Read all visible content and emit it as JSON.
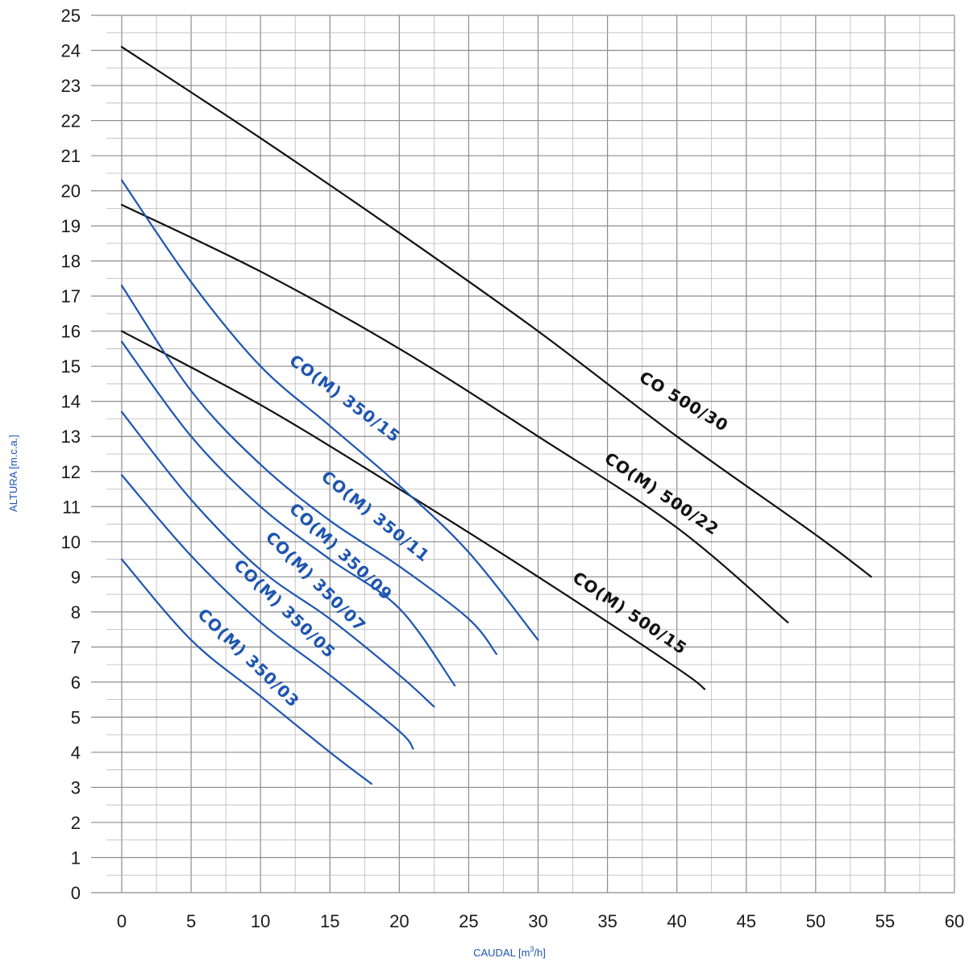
{
  "chart_data": {
    "type": "line",
    "title": "",
    "xlabel": "CAUDAL [m",
    "xlabel_sup": "3",
    "xlabel_tail": "/h]",
    "ylabel": "ALTURA [m.c.a.]",
    "xlim": [
      0,
      60
    ],
    "ylim": [
      0,
      25
    ],
    "x_ticks": [
      "0",
      "5",
      "10",
      "15",
      "20",
      "25",
      "30",
      "35",
      "40",
      "45",
      "50",
      "55",
      "60"
    ],
    "y_ticks": [
      "0",
      "1",
      "2",
      "3",
      "4",
      "5",
      "6",
      "7",
      "8",
      "9",
      "10",
      "11",
      "12",
      "13",
      "14",
      "15",
      "16",
      "17",
      "18",
      "19",
      "20",
      "21",
      "22",
      "23",
      "24",
      "25"
    ],
    "grid": true,
    "colors": {
      "black_series": "#111111",
      "blue_series": "#1d55b0"
    },
    "series": [
      {
        "name": "CO  500/30",
        "color": "#111111",
        "points": [
          [
            0,
            24.1
          ],
          [
            10,
            21.5
          ],
          [
            20,
            18.8
          ],
          [
            30,
            16.0
          ],
          [
            40,
            13.0
          ],
          [
            50,
            10.2
          ],
          [
            54,
            9.0
          ]
        ]
      },
      {
        "name": "CO(M) 500/22",
        "color": "#111111",
        "points": [
          [
            0,
            19.6
          ],
          [
            10,
            17.7
          ],
          [
            20,
            15.5
          ],
          [
            30,
            13.0
          ],
          [
            40,
            10.4
          ],
          [
            48,
            7.7
          ]
        ]
      },
      {
        "name": "CO(M) 500/15",
        "color": "#111111",
        "points": [
          [
            0,
            16.0
          ],
          [
            10,
            13.9
          ],
          [
            20,
            11.5
          ],
          [
            30,
            9.0
          ],
          [
            40,
            6.4
          ],
          [
            42,
            5.8
          ]
        ]
      },
      {
        "name": "CO(M) 350/15",
        "color": "#1d55b0",
        "points": [
          [
            0,
            20.3
          ],
          [
            5,
            17.4
          ],
          [
            10,
            15.0
          ],
          [
            15,
            13.3
          ],
          [
            20,
            11.6
          ],
          [
            25,
            9.7
          ],
          [
            30,
            7.2
          ]
        ]
      },
      {
        "name": "CO(M) 350/11",
        "color": "#1d55b0",
        "points": [
          [
            0,
            17.3
          ],
          [
            5,
            14.3
          ],
          [
            10,
            12.2
          ],
          [
            15,
            10.6
          ],
          [
            20,
            9.3
          ],
          [
            25,
            7.8
          ],
          [
            27,
            6.8
          ]
        ]
      },
      {
        "name": "CO(M) 350/09",
        "color": "#1d55b0",
        "points": [
          [
            0,
            15.7
          ],
          [
            5,
            13.0
          ],
          [
            10,
            11.0
          ],
          [
            15,
            9.5
          ],
          [
            20,
            8.1
          ],
          [
            24,
            5.9
          ]
        ]
      },
      {
        "name": "CO(M) 350/07",
        "color": "#1d55b0",
        "points": [
          [
            0,
            13.7
          ],
          [
            5,
            11.2
          ],
          [
            10,
            9.2
          ],
          [
            15,
            7.8
          ],
          [
            20,
            6.2
          ],
          [
            22.5,
            5.3
          ]
        ]
      },
      {
        "name": "CO(M) 350/05",
        "color": "#1d55b0",
        "points": [
          [
            0,
            11.9
          ],
          [
            5,
            9.6
          ],
          [
            10,
            7.7
          ],
          [
            15,
            6.2
          ],
          [
            20,
            4.6
          ],
          [
            21,
            4.1
          ]
        ]
      },
      {
        "name": "CO(M) 350/03",
        "color": "#1d55b0",
        "points": [
          [
            0,
            9.5
          ],
          [
            5,
            7.2
          ],
          [
            10,
            5.6
          ],
          [
            15,
            4.0
          ],
          [
            18,
            3.1
          ]
        ]
      }
    ]
  }
}
